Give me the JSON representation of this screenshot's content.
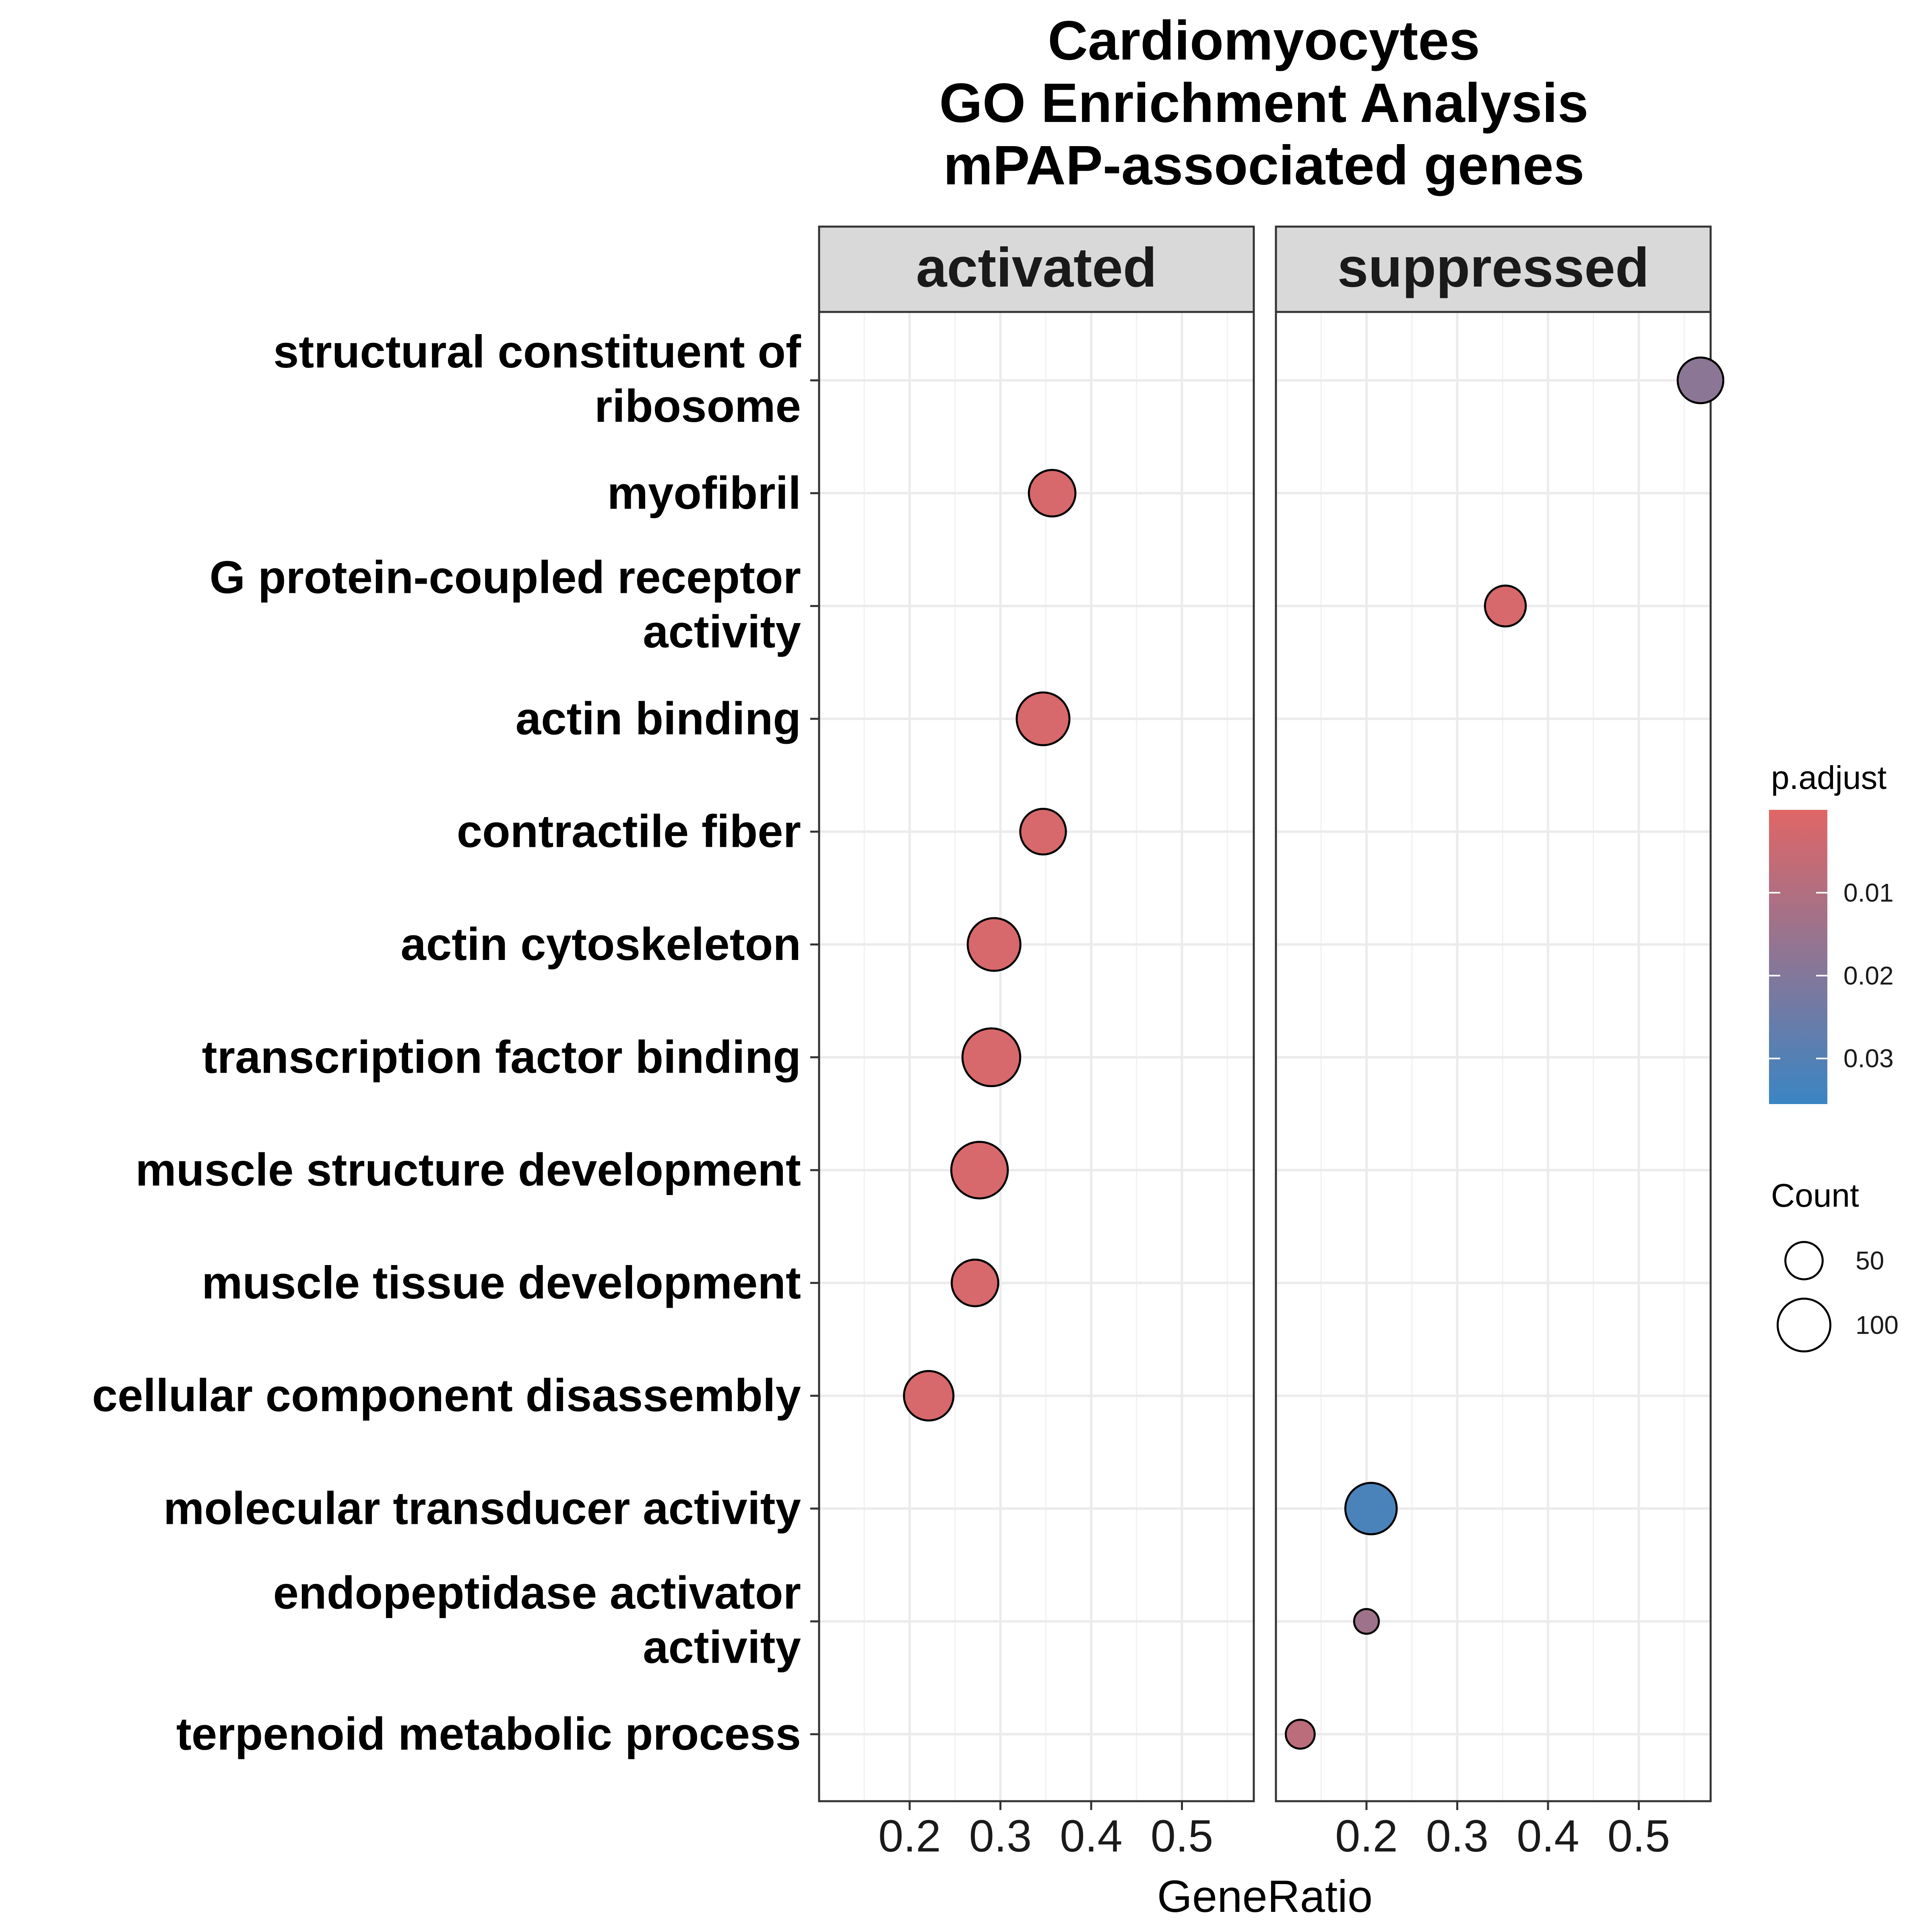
{
  "chart_data": {
    "type": "scatter",
    "title": [
      "Cardiomyocytes",
      "GO Enrichment Analysis",
      "mPAP-associated genes"
    ],
    "xlabel": "GeneRatio",
    "ylabel": "",
    "xlim": [
      0.105,
      0.585
    ],
    "x_ticks": [
      0.2,
      0.3,
      0.4,
      0.5
    ],
    "x_tick_labels": [
      "0.2",
      "0.3",
      "0.4",
      "0.5"
    ],
    "grid": true,
    "facets": [
      "activated",
      "suppressed"
    ],
    "categories": [
      [
        "structural constituent of",
        "ribosome"
      ],
      [
        "myofibril"
      ],
      [
        "G protein-coupled receptor",
        "activity"
      ],
      [
        "actin binding"
      ],
      [
        "contractile fiber"
      ],
      [
        "actin cytoskeleton"
      ],
      [
        "transcription factor binding"
      ],
      [
        "muscle structure development"
      ],
      [
        "muscle tissue development"
      ],
      [
        "cellular component disassembly"
      ],
      [
        "molecular transducer activity"
      ],
      [
        "endopeptidase activator",
        "activity"
      ],
      [
        "terpenoid metabolic process"
      ]
    ],
    "points": [
      {
        "facet": "activated",
        "term": 1,
        "gene_ratio": 0.357,
        "count": 78,
        "p_adjust": 0.002
      },
      {
        "facet": "activated",
        "term": 3,
        "gene_ratio": 0.347,
        "count": 100,
        "p_adjust": 0.002
      },
      {
        "facet": "activated",
        "term": 4,
        "gene_ratio": 0.347,
        "count": 75,
        "p_adjust": 0.002
      },
      {
        "facet": "activated",
        "term": 5,
        "gene_ratio": 0.293,
        "count": 100,
        "p_adjust": 0.002
      },
      {
        "facet": "activated",
        "term": 6,
        "gene_ratio": 0.29,
        "count": 120,
        "p_adjust": 0.002
      },
      {
        "facet": "activated",
        "term": 7,
        "gene_ratio": 0.277,
        "count": 115,
        "p_adjust": 0.002
      },
      {
        "facet": "activated",
        "term": 8,
        "gene_ratio": 0.272,
        "count": 78,
        "p_adjust": 0.002
      },
      {
        "facet": "activated",
        "term": 9,
        "gene_ratio": 0.221,
        "count": 88,
        "p_adjust": 0.002
      },
      {
        "facet": "suppressed",
        "term": 0,
        "gene_ratio": 0.568,
        "count": 75,
        "p_adjust": 0.018
      },
      {
        "facet": "suppressed",
        "term": 2,
        "gene_ratio": 0.353,
        "count": 60,
        "p_adjust": 0.002
      },
      {
        "facet": "suppressed",
        "term": 10,
        "gene_ratio": 0.205,
        "count": 95,
        "p_adjust": 0.032
      },
      {
        "facet": "suppressed",
        "term": 11,
        "gene_ratio": 0.2,
        "count": 22,
        "p_adjust": 0.014
      },
      {
        "facet": "suppressed",
        "term": 12,
        "gene_ratio": 0.127,
        "count": 30,
        "p_adjust": 0.008
      }
    ],
    "legend": {
      "placement": "right",
      "color": {
        "title": "p.adjust",
        "breaks": [
          0.01,
          0.02,
          0.03
        ],
        "labels": [
          "0.01",
          "0.02",
          "0.03"
        ],
        "range": [
          0.0,
          0.0355
        ],
        "low_color": "#e06666",
        "high_color": "#3a85c3"
      },
      "size": {
        "title": "Count",
        "breaks": [
          50,
          100
        ],
        "labels": [
          "50",
          "100"
        ]
      }
    }
  }
}
